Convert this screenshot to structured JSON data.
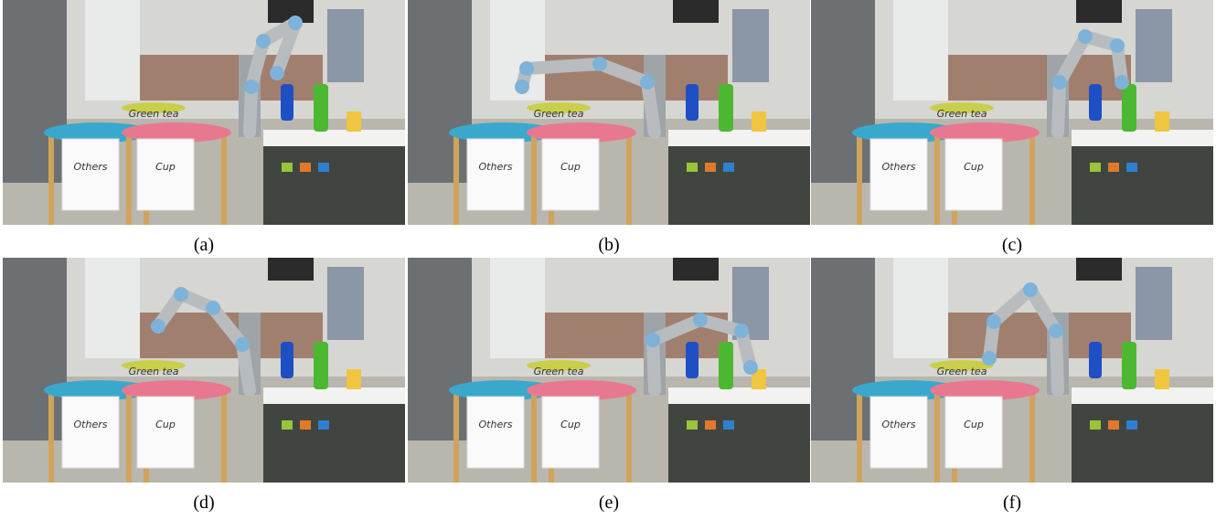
{
  "panels": [
    {
      "caption": "(a)"
    },
    {
      "caption": "(b)"
    },
    {
      "caption": "(c)"
    },
    {
      "caption": "(d)"
    },
    {
      "caption": "(e)"
    },
    {
      "caption": "(f)"
    }
  ],
  "signs": {
    "left": "Others",
    "right": "Cup",
    "shelf": "Green tea"
  }
}
